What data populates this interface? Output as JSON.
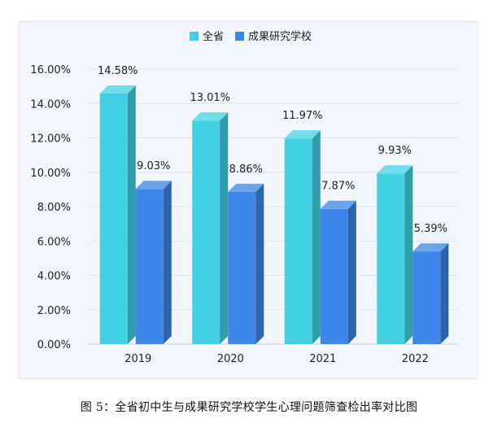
{
  "caption": "图 5：全省初中生与成果研究学校学生心理问题筛查检出率对比图",
  "chart_data": {
    "type": "bar",
    "categories": [
      "2019",
      "2020",
      "2021",
      "2022"
    ],
    "series": [
      {
        "name": "全省",
        "values": [
          14.58,
          13.01,
          11.97,
          9.93
        ],
        "labels": [
          "14.58%",
          "13.01%",
          "11.97%",
          "9.93%"
        ],
        "color": "#40d2e2"
      },
      {
        "name": "成果研究学校",
        "values": [
          9.03,
          8.86,
          7.87,
          5.39
        ],
        "labels": [
          "9.03%",
          "8.86%",
          "7.87%",
          "5.39%"
        ],
        "color": "#3b86e6"
      }
    ],
    "ylim": [
      0,
      16
    ],
    "yticks": [
      "0.00%",
      "2.00%",
      "4.00%",
      "6.00%",
      "8.00%",
      "10.00%",
      "12.00%",
      "14.00%",
      "16.00%"
    ],
    "grid": true,
    "legend": "top-center",
    "style": "3d"
  }
}
